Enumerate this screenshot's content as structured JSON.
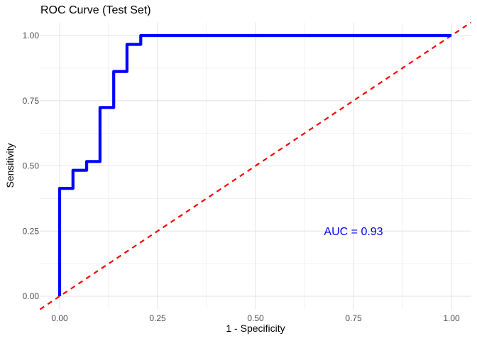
{
  "chart_data": {
    "type": "line",
    "title": "ROC Curve (Test Set)",
    "xlabel": "1 - Specificity",
    "ylabel": "Sensitivity",
    "xlim": [
      -0.05,
      1.05
    ],
    "ylim": [
      -0.05,
      1.05
    ],
    "grid": "major-and-minor",
    "legend": "none",
    "x_ticks": [
      0,
      0.25,
      0.5,
      0.75,
      1
    ],
    "x_tick_labels": [
      "0.00",
      "0.25",
      "0.50",
      "0.75",
      "1.00"
    ],
    "x_minor_ticks": [
      0.125,
      0.375,
      0.625,
      0.875
    ],
    "y_ticks": [
      0,
      0.25,
      0.5,
      0.75,
      1
    ],
    "y_tick_labels": [
      "0.00",
      "0.25",
      "0.50",
      "0.75",
      "1.00"
    ],
    "y_minor_ticks": [
      0.125,
      0.375,
      0.625,
      0.875
    ],
    "series": [
      {
        "name": "chance-diagonal",
        "style": "dashed",
        "color": "#FF0000",
        "linewidth": 2.2,
        "dash": "7 6",
        "x": [
          -0.05,
          1.05
        ],
        "y": [
          -0.05,
          1.05
        ]
      },
      {
        "name": "roc-curve",
        "style": "solid-step",
        "color": "#0000FF",
        "linewidth": 4.2,
        "dash": null,
        "x": [
          0,
          0,
          0.034,
          0.034,
          0.069,
          0.069,
          0.103,
          0.103,
          0.138,
          0.138,
          0.172,
          0.172,
          0.207,
          0.207,
          1.0
        ],
        "y": [
          0,
          0.414,
          0.414,
          0.483,
          0.483,
          0.517,
          0.517,
          0.724,
          0.724,
          0.862,
          0.862,
          0.966,
          0.966,
          1.0,
          1.0
        ]
      }
    ],
    "annotations": [
      {
        "text": "AUC = 0.93",
        "x": 0.75,
        "y": 0.25,
        "color": "#0000FF",
        "font_size": 16
      }
    ]
  },
  "colors": {
    "background": "#FFFFFF",
    "grid_major": "#E3E3E3",
    "grid_minor": "#F1F1F1",
    "tick_label": "#4D4D4D",
    "axis_title": "#000000",
    "title": "#000000"
  }
}
